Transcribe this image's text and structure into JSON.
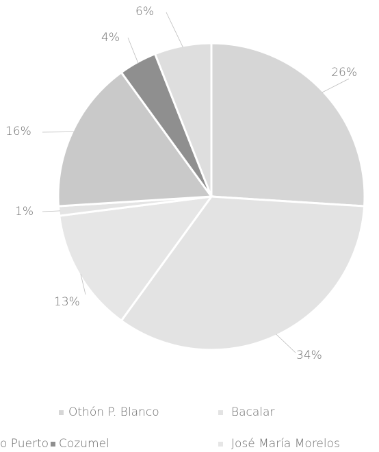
{
  "chart_data": {
    "type": "pie",
    "start_angle_deg": 0,
    "direction": "clockwise",
    "slices": [
      {
        "name": "Othón P. Blanco",
        "value": 26,
        "label": "26%",
        "color": "#d6d6d6"
      },
      {
        "name": "Bacalar",
        "value": 34,
        "label": "34%",
        "color": "#e3e3e3"
      },
      {
        "name": "",
        "value": 13,
        "label": "13%",
        "color": "#e6e6e6"
      },
      {
        "name": "",
        "value": 1,
        "label": "1%",
        "color": "#e4e4e4"
      },
      {
        "name": "",
        "value": 16,
        "label": "16%",
        "color": "#c9c9c9"
      },
      {
        "name": "Cozumel",
        "value": 4,
        "label": "4%",
        "color": "#8f8f8f"
      },
      {
        "name": "",
        "value": 6,
        "label": "6%",
        "color": "#dedede"
      }
    ],
    "legend_position": "bottom"
  },
  "legend": {
    "items": [
      {
        "text": "Othón P. Blanco",
        "color": "#d6d6d6"
      },
      {
        "text": "Bacalar",
        "color": "#e3e3e3"
      },
      {
        "text": "o Puerto",
        "color": null
      },
      {
        "text": "Cozumel",
        "color": "#8f8f8f"
      },
      {
        "text": "José María Morelos",
        "color": "#e6e6e6"
      }
    ]
  }
}
